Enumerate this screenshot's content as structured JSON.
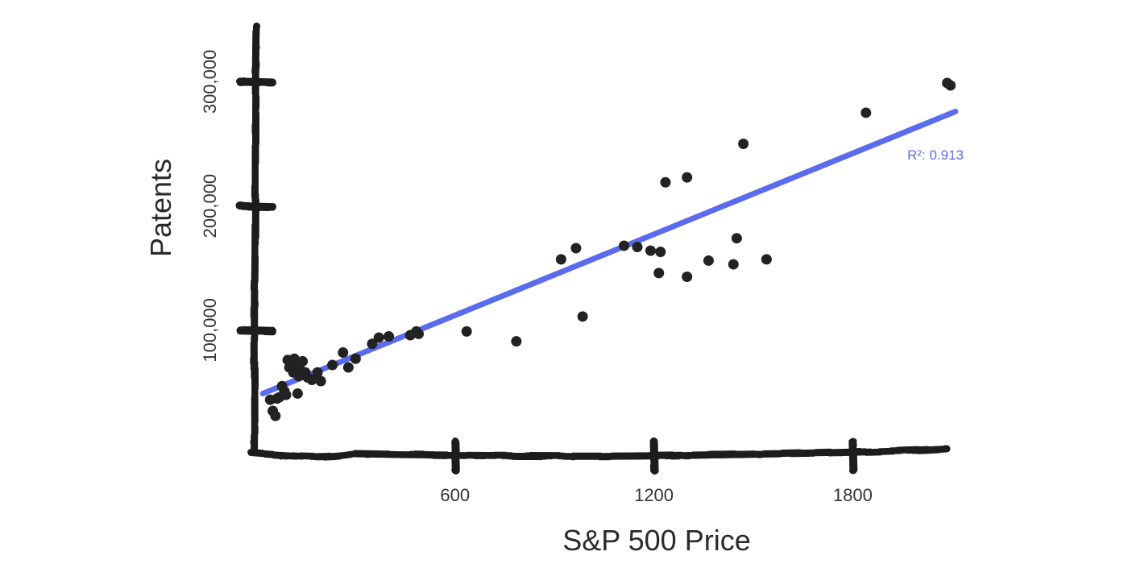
{
  "chart_data": {
    "type": "scatter",
    "title": "",
    "xlabel": "S&P 500 Price",
    "ylabel": "Patents",
    "xlim": [
      0,
      2100
    ],
    "ylim": [
      0,
      340000
    ],
    "x_ticks": [
      600,
      1200,
      1800
    ],
    "x_tick_labels": [
      "600",
      "1200",
      "1800"
    ],
    "y_ticks": [
      100000,
      200000,
      300000
    ],
    "y_tick_labels": [
      "100,000",
      "200,000",
      "300,000"
    ],
    "grid": false,
    "points": [
      [
        42,
        44000
      ],
      [
        50,
        35000
      ],
      [
        58,
        31000
      ],
      [
        63,
        45000
      ],
      [
        70,
        46000
      ],
      [
        78,
        55000
      ],
      [
        85,
        51000
      ],
      [
        90,
        48000
      ],
      [
        95,
        76000
      ],
      [
        100,
        70000
      ],
      [
        108,
        74000
      ],
      [
        112,
        66000
      ],
      [
        115,
        77000
      ],
      [
        120,
        72000
      ],
      [
        125,
        49000
      ],
      [
        128,
        63000
      ],
      [
        133,
        68000
      ],
      [
        140,
        75000
      ],
      [
        148,
        66000
      ],
      [
        155,
        62000
      ],
      [
        168,
        60000
      ],
      [
        185,
        66000
      ],
      [
        195,
        59000
      ],
      [
        230,
        72000
      ],
      [
        262,
        82000
      ],
      [
        278,
        70000
      ],
      [
        300,
        77000
      ],
      [
        350,
        89000
      ],
      [
        370,
        94000
      ],
      [
        400,
        95000
      ],
      [
        465,
        96000
      ],
      [
        483,
        99000
      ],
      [
        490,
        97000
      ],
      [
        635,
        99000
      ],
      [
        785,
        91000
      ],
      [
        920,
        157000
      ],
      [
        965,
        166000
      ],
      [
        985,
        111000
      ],
      [
        1110,
        168000
      ],
      [
        1150,
        167000
      ],
      [
        1190,
        164000
      ],
      [
        1220,
        163000
      ],
      [
        1215,
        146000
      ],
      [
        1235,
        219000
      ],
      [
        1300,
        223000
      ],
      [
        1300,
        143000
      ],
      [
        1365,
        156000
      ],
      [
        1440,
        153000
      ],
      [
        1450,
        174000
      ],
      [
        1470,
        250000
      ],
      [
        1540,
        157000
      ],
      [
        1840,
        275000
      ],
      [
        2085,
        299000
      ],
      [
        2095,
        297000
      ]
    ],
    "trendline": {
      "x": [
        20,
        2110
      ],
      "y": [
        49000,
        276000
      ]
    },
    "annotation": "R²: 0.913",
    "colors": {
      "points": "#222222",
      "trendline": "#5b6bee",
      "axis": "#1a1a1a"
    }
  }
}
